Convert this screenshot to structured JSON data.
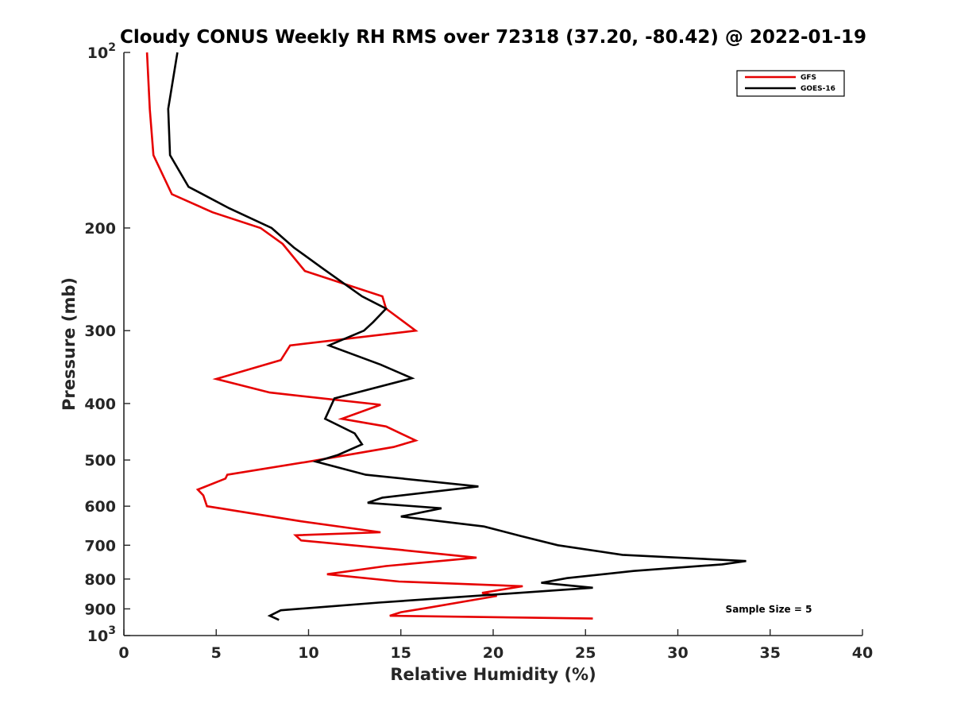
{
  "chart_data": {
    "type": "line",
    "title": "Cloudy CONUS Weekly RH RMS over 72318 (37.20, -80.42) @ 2022-01-19",
    "xlabel": "Relative Humidity (%)",
    "ylabel": "Pressure (mb)",
    "xlim": [
      0,
      40
    ],
    "ylim": [
      100,
      1000
    ],
    "yscale": "log",
    "y_reversed": true,
    "grid": false,
    "legend_position": "top-right",
    "x_ticks": [
      0,
      5,
      10,
      15,
      20,
      25,
      30,
      35,
      40
    ],
    "x_tick_labels": [
      "0",
      "5",
      "10",
      "15",
      "20",
      "25",
      "30",
      "35",
      "40"
    ],
    "y_ticks": [
      100,
      200,
      300,
      400,
      500,
      600,
      700,
      800,
      900,
      1000
    ],
    "y_tick_labels": [
      {
        "base": "10",
        "exp": "2"
      },
      {
        "text": "200"
      },
      {
        "text": "300"
      },
      {
        "text": "400"
      },
      {
        "text": "500"
      },
      {
        "text": "600"
      },
      {
        "text": "700"
      },
      {
        "text": "800"
      },
      {
        "text": "900"
      },
      {
        "base": "10",
        "exp": "3"
      }
    ],
    "series": [
      {
        "name": "GFS",
        "color": "#e60000",
        "points": [
          [
            1.25,
            100
          ],
          [
            1.4,
            125
          ],
          [
            1.6,
            150
          ],
          [
            2.6,
            175
          ],
          [
            4.8,
            188
          ],
          [
            7.4,
            200
          ],
          [
            8.6,
            213
          ],
          [
            9.8,
            237
          ],
          [
            14.0,
            262
          ],
          [
            14.2,
            275
          ],
          [
            15.8,
            300
          ],
          [
            9.0,
            318
          ],
          [
            8.5,
            337
          ],
          [
            5.0,
            363
          ],
          [
            7.9,
            383
          ],
          [
            13.9,
            402
          ],
          [
            11.8,
            425
          ],
          [
            14.2,
            438
          ],
          [
            15.8,
            463
          ],
          [
            14.6,
            475
          ],
          [
            10.2,
            502
          ],
          [
            5.6,
            530
          ],
          [
            5.5,
            538
          ],
          [
            4.0,
            562
          ],
          [
            4.3,
            575
          ],
          [
            4.5,
            600
          ],
          [
            9.6,
            637
          ],
          [
            13.9,
            665
          ],
          [
            9.3,
            673
          ],
          [
            9.6,
            687
          ],
          [
            14.8,
            712
          ],
          [
            19.1,
            735
          ],
          [
            14.2,
            760
          ],
          [
            11.0,
            785
          ],
          [
            14.9,
            808
          ],
          [
            21.6,
            823
          ],
          [
            19.4,
            845
          ],
          [
            20.2,
            855
          ],
          [
            16.4,
            897
          ],
          [
            15.0,
            912
          ],
          [
            14.4,
            925
          ],
          [
            25.4,
            935
          ]
        ]
      },
      {
        "name": "GOES-16",
        "color": "#000000",
        "points": [
          [
            2.9,
            100
          ],
          [
            2.4,
            125
          ],
          [
            2.5,
            150
          ],
          [
            3.5,
            170
          ],
          [
            5.7,
            185
          ],
          [
            8.0,
            200
          ],
          [
            9.2,
            216
          ],
          [
            10.8,
            235
          ],
          [
            12.9,
            262
          ],
          [
            14.2,
            275
          ],
          [
            13.5,
            290
          ],
          [
            13.0,
            300
          ],
          [
            11.1,
            318
          ],
          [
            13.9,
            343
          ],
          [
            15.6,
            362
          ],
          [
            11.4,
            392
          ],
          [
            10.9,
            425
          ],
          [
            12.5,
            450
          ],
          [
            12.9,
            470
          ],
          [
            11.6,
            490
          ],
          [
            10.4,
            503
          ],
          [
            13.1,
            530
          ],
          [
            19.2,
            555
          ],
          [
            14.0,
            580
          ],
          [
            13.2,
            592
          ],
          [
            17.2,
            605
          ],
          [
            15.0,
            625
          ],
          [
            19.5,
            650
          ],
          [
            21.5,
            675
          ],
          [
            23.5,
            700
          ],
          [
            27.0,
            727
          ],
          [
            33.7,
            745
          ],
          [
            32.4,
            755
          ],
          [
            27.6,
            775
          ],
          [
            24.0,
            797
          ],
          [
            22.6,
            812
          ],
          [
            25.4,
            828
          ],
          [
            20.2,
            850
          ],
          [
            13.8,
            878
          ],
          [
            8.5,
            905
          ],
          [
            7.9,
            925
          ],
          [
            8.4,
            940
          ]
        ]
      }
    ],
    "annotation": "Sample Size = 5"
  }
}
